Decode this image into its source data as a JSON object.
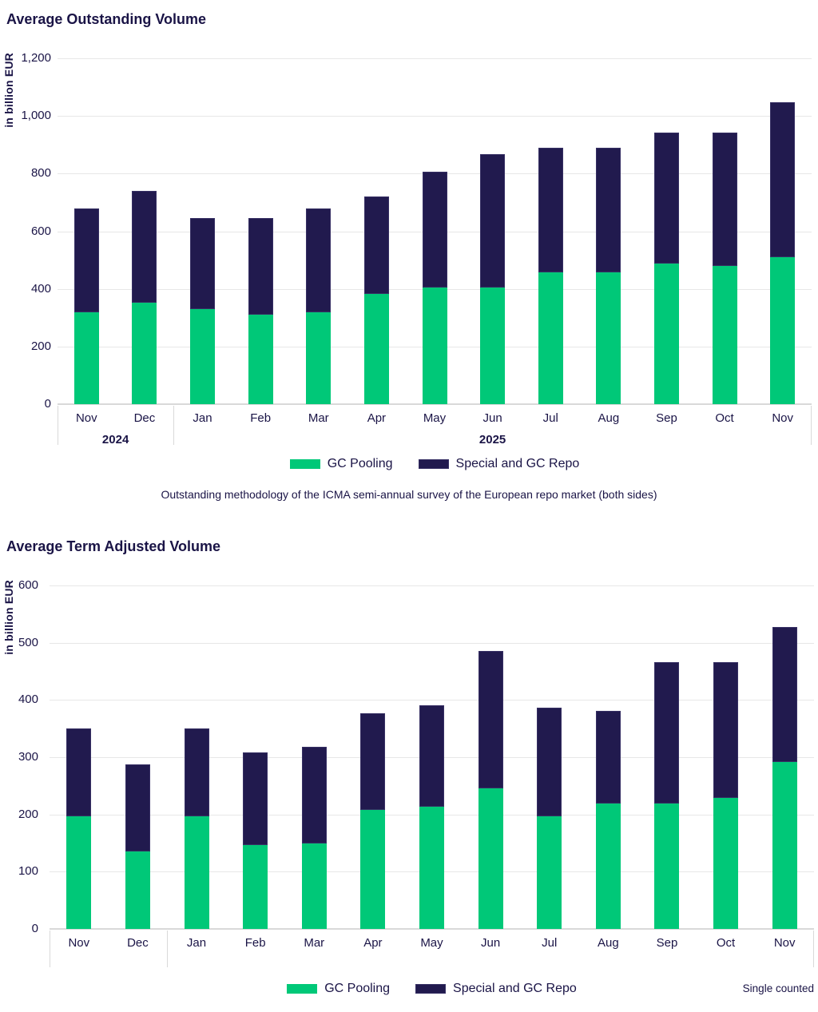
{
  "colors": {
    "green": "#00C878",
    "navy": "#211A4E",
    "navy_border": "#373064",
    "text": "#1A1446",
    "gridline": "#E7E7E7",
    "axis_line": "#D9D9D9"
  },
  "chart_data": [
    {
      "type": "bar",
      "stacked": true,
      "title": "Average Outstanding Volume",
      "ylabel": "in billion EUR",
      "ylim": [
        0,
        1200
      ],
      "ytick_step": 200,
      "ytick_labels": [
        "0",
        "200",
        "400",
        "600",
        "800",
        "1,000",
        "1,200"
      ],
      "grid": true,
      "legend_position": "bottom-center",
      "categories": [
        "Nov",
        "Dec",
        "Jan",
        "Feb",
        "Mar",
        "Apr",
        "May",
        "Jun",
        "Jul",
        "Aug",
        "Sep",
        "Oct",
        "Nov"
      ],
      "year_groups": [
        {
          "label": "2024",
          "months": 2
        },
        {
          "label": "2025",
          "months": 11
        }
      ],
      "series": [
        {
          "name": "GC Pooling",
          "color_key": "green",
          "values": [
            320,
            351,
            329,
            310,
            319,
            383,
            404,
            406,
            457,
            456,
            488,
            479,
            509
          ]
        },
        {
          "name": "Special and GC Repo",
          "color_key": "navy",
          "values": [
            359,
            390,
            318,
            336,
            360,
            338,
            402,
            462,
            433,
            433,
            454,
            462,
            538
          ]
        }
      ],
      "totals": [
        679,
        741,
        647,
        646,
        679,
        721,
        806,
        868,
        890,
        889,
        942,
        941,
        1047
      ],
      "caption": "Outstanding methodology of the ICMA semi-annual survey of the European repo market (both sides)"
    },
    {
      "type": "bar",
      "stacked": true,
      "title": "Average Term Adjusted Volume",
      "ylabel": "in billion EUR",
      "ylim": [
        0,
        600
      ],
      "ytick_step": 100,
      "ytick_labels": [
        "0",
        "100",
        "200",
        "300",
        "400",
        "500",
        "600"
      ],
      "grid": true,
      "legend_position": "bottom-center",
      "categories": [
        "Nov",
        "Dec",
        "Jan",
        "Feb",
        "Mar",
        "Apr",
        "May",
        "Jun",
        "Jul",
        "Aug",
        "Sep",
        "Oct",
        "Nov"
      ],
      "year_groups": [
        {
          "label": "",
          "months": 2
        },
        {
          "label": "",
          "months": 11
        }
      ],
      "series": [
        {
          "name": "GC Pooling",
          "color_key": "green",
          "values": [
            197,
            135,
            197,
            146,
            150,
            208,
            213,
            245,
            197,
            219,
            219,
            229,
            292
          ]
        },
        {
          "name": "Special and GC Repo",
          "color_key": "navy",
          "values": [
            153,
            152,
            153,
            162,
            168,
            169,
            178,
            241,
            190,
            162,
            247,
            237,
            236
          ]
        }
      ],
      "totals": [
        350,
        287,
        350,
        308,
        318,
        377,
        391,
        486,
        387,
        381,
        466,
        466,
        528
      ],
      "note": "Single counted"
    }
  ]
}
